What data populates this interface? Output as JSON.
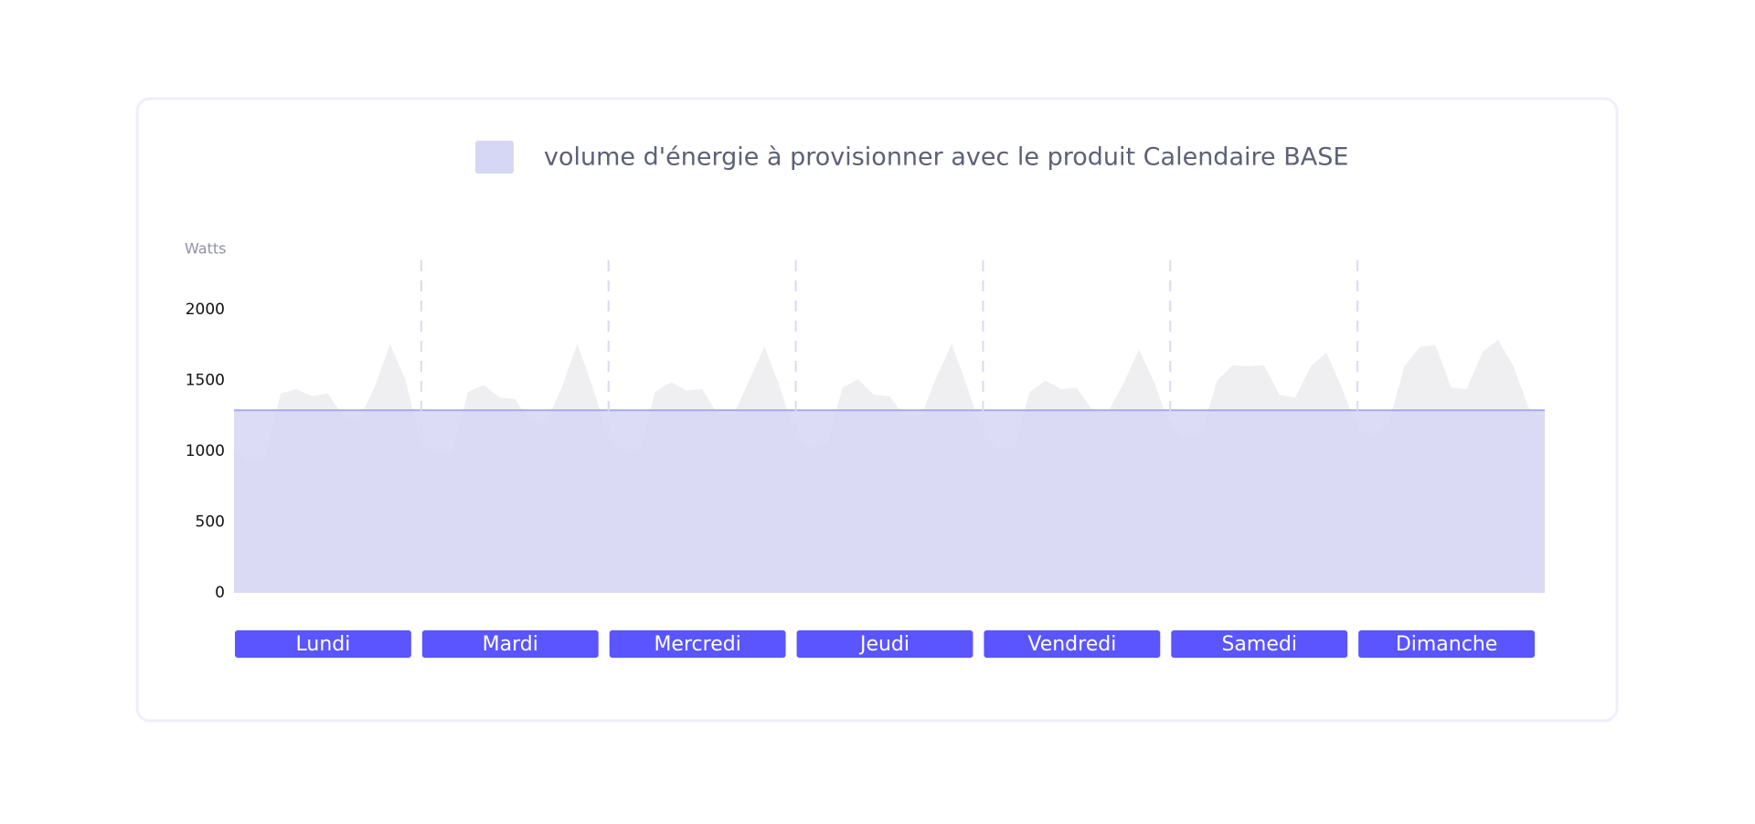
{
  "chart_data": {
    "type": "area",
    "legend": "volume d'énergie à provisionner avec le produit Calendaire BASE",
    "ylabel": "Watts",
    "days": [
      "Lundi",
      "Mardi",
      "Mercredi",
      "Jeudi",
      "Vendredi",
      "Samedi",
      "Dimanche"
    ],
    "x": [
      0,
      2,
      4,
      6,
      8,
      10,
      12,
      14,
      16,
      18,
      20,
      22,
      24,
      26,
      28,
      30,
      32,
      34,
      36,
      38,
      40,
      42,
      44,
      46,
      48,
      50,
      52,
      54,
      56,
      58,
      60,
      62,
      64,
      66,
      68,
      70,
      72,
      74,
      76,
      78,
      80,
      82,
      84,
      86,
      88,
      90,
      92,
      94,
      96,
      98,
      100,
      102,
      104,
      106,
      108,
      110,
      112,
      114,
      116,
      118,
      120,
      122,
      124,
      126,
      128,
      130,
      132,
      134,
      136,
      138,
      140,
      142,
      144,
      146,
      148,
      150,
      152,
      154,
      156,
      158,
      160,
      162,
      164,
      166,
      168
    ],
    "xlim": [
      0,
      168
    ],
    "series": [
      {
        "color": "#efeff2",
        "values": [
          1000,
          930,
          960,
          1410,
          1440,
          1390,
          1410,
          1250,
          1220,
          1450,
          1760,
          1500,
          1050,
          990,
          1000,
          1420,
          1470,
          1380,
          1370,
          1210,
          1200,
          1450,
          1760,
          1450,
          1100,
          1000,
          1020,
          1420,
          1490,
          1430,
          1440,
          1260,
          1250,
          1500,
          1740,
          1450,
          1100,
          1030,
          1050,
          1450,
          1510,
          1400,
          1390,
          1250,
          1240,
          1520,
          1760,
          1450,
          1120,
          1010,
          1030,
          1420,
          1500,
          1440,
          1450,
          1290,
          1280,
          1480,
          1720,
          1480,
          1180,
          1090,
          1130,
          1500,
          1610,
          1600,
          1610,
          1400,
          1380,
          1600,
          1700,
          1450,
          1150,
          1110,
          1200,
          1600,
          1740,
          1750,
          1450,
          1440,
          1700,
          1790,
          1600,
          1300,
          1250
        ]
      },
      {
        "name": "volume d'énergie à provisionner avec le produit Calendaire BASE",
        "color": "#d6d6f5",
        "line_color": "#a9a9ee",
        "value": 1290
      }
    ],
    "ylim": [
      0,
      2350
    ],
    "yticks": [
      0,
      500,
      1000,
      1500,
      2000
    ],
    "day_color": "#5a55ff"
  }
}
